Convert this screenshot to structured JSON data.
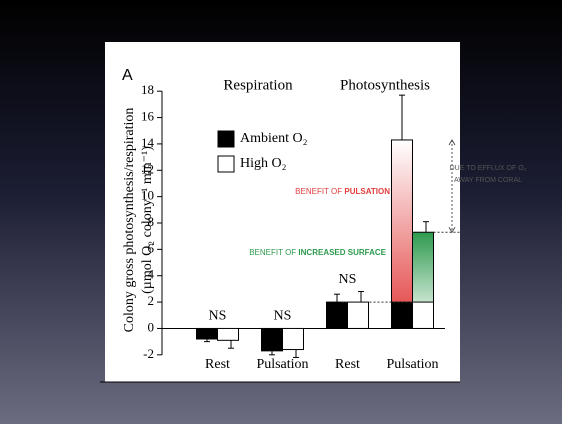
{
  "chart_data": {
    "type": "bar",
    "panel_label": "A",
    "ylabel": [
      "Colony gross photosynthesis/respiration",
      "(µmol O₂ colony⁻¹ min⁻¹)"
    ],
    "group_labels": [
      "Respiration",
      "Photosynthesis"
    ],
    "categories": [
      "Rest",
      "Pulsation",
      "Rest",
      "Pulsation"
    ],
    "series": [
      {
        "name": "Ambient O₂",
        "color": "#000000",
        "values": [
          -0.8,
          -1.7,
          2.0,
          14.3
        ],
        "errors": [
          0.2,
          0.3,
          0.6,
          3.4
        ],
        "benefit_color": "#e23c3c"
      },
      {
        "name": "High O₂",
        "color": "#ffffff",
        "values": [
          -0.9,
          -1.6,
          2.0,
          7.3
        ],
        "errors": [
          0.6,
          0.6,
          0.8,
          0.8
        ],
        "benefit_color": "#2e9a4e"
      }
    ],
    "ns_labels": [
      "NS",
      "NS",
      "NS",
      null
    ],
    "annotations": {
      "pulsation": [
        "BENEFIT OF ",
        "PULSATION"
      ],
      "surface": [
        "BENEFIT OF ",
        "INCREASED SURFACE"
      ],
      "efflux": [
        "DUE TO EFFLUX OF O₂",
        "AWAY FROM CORAL"
      ]
    },
    "ylim": [
      -3,
      19
    ],
    "yticks": [
      -2,
      0,
      2,
      4,
      6,
      8,
      10,
      12,
      14,
      16,
      18
    ]
  }
}
